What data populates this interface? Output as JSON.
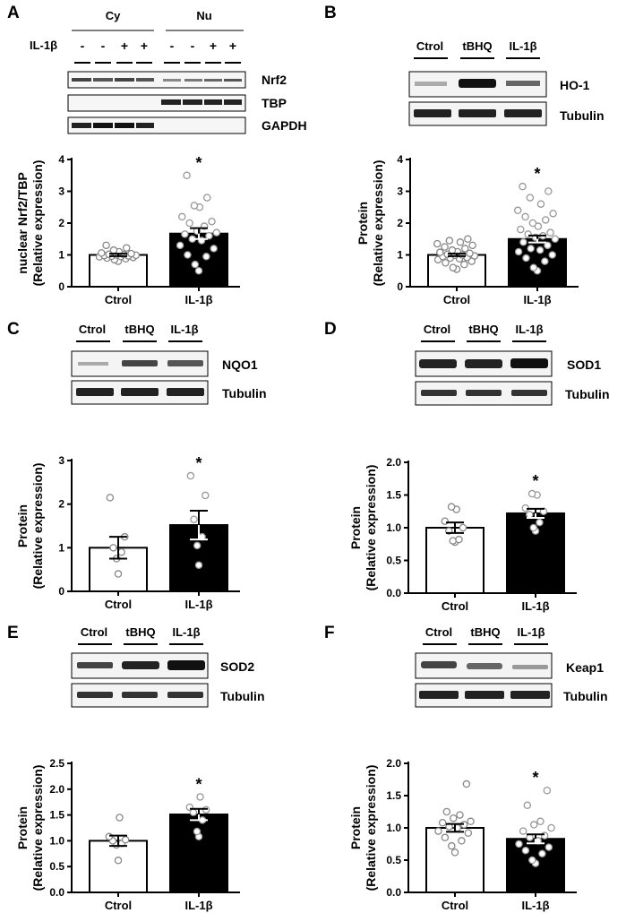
{
  "panels": [
    {
      "letter": "A",
      "blot": {
        "groups": [
          "Cy",
          "Nu"
        ],
        "row_label": "IL-1β",
        "signs": [
          "-",
          "-",
          "+",
          "+",
          "-",
          "-",
          "+",
          "+"
        ],
        "bands": [
          "Nrf2",
          "TBP",
          "GAPDH"
        ]
      },
      "chart_data": {
        "type": "bar",
        "categories": [
          "Ctrol",
          "IL-1β"
        ],
        "values": [
          1.0,
          1.67
        ],
        "errors": [
          0.04,
          0.17
        ],
        "points": [
          [
            0.8,
            0.85,
            0.88,
            0.9,
            0.92,
            0.94,
            0.95,
            0.96,
            0.97,
            0.98,
            0.99,
            1.0,
            1.01,
            1.02,
            1.04,
            1.06,
            1.1,
            1.15,
            1.22,
            1.3
          ],
          [
            0.5,
            0.7,
            0.95,
            1.0,
            1.2,
            1.3,
            1.45,
            1.5,
            1.6,
            1.65,
            1.7,
            1.75,
            1.9,
            2.0,
            2.05,
            2.2,
            2.5,
            2.55,
            2.8,
            3.5
          ]
        ],
        "ylabel": [
          "nuclear Nrf2/TBP",
          "(Relative expression)"
        ],
        "ylim": [
          0,
          4
        ],
        "yticks": [
          "0",
          "1",
          "2",
          "3",
          "4"
        ],
        "significance": "*"
      }
    },
    {
      "letter": "B",
      "blot": {
        "lanes": [
          "Ctrol",
          "tBHQ",
          "IL-1β"
        ],
        "bands": [
          "HO-1",
          "Tubulin"
        ]
      },
      "chart_data": {
        "type": "bar",
        "categories": [
          "Ctrol",
          "IL-1β"
        ],
        "values": [
          1.0,
          1.5
        ],
        "errors": [
          0.04,
          0.11
        ],
        "points": [
          [
            0.55,
            0.6,
            0.7,
            0.75,
            0.8,
            0.85,
            0.88,
            0.9,
            0.92,
            0.95,
            0.97,
            0.99,
            1.0,
            1.02,
            1.05,
            1.08,
            1.1,
            1.15,
            1.2,
            1.25,
            1.3,
            1.35,
            1.4,
            1.45,
            1.5
          ],
          [
            0.5,
            0.6,
            0.8,
            0.9,
            1.0,
            1.1,
            1.15,
            1.2,
            1.3,
            1.4,
            1.5,
            1.55,
            1.6,
            1.65,
            1.7,
            1.8,
            1.9,
            2.0,
            2.1,
            2.2,
            2.3,
            2.4,
            2.6,
            2.8,
            3.0,
            3.15
          ]
        ],
        "ylabel": [
          "Protein",
          "(Relative expression)"
        ],
        "ylim": [
          0,
          4
        ],
        "yticks": [
          "0",
          "1",
          "2",
          "3",
          "4"
        ],
        "significance": "*"
      }
    },
    {
      "letter": "C",
      "blot": {
        "lanes": [
          "Ctrol",
          "tBHQ",
          "IL-1β"
        ],
        "bands": [
          "NQO1",
          "Tubulin"
        ]
      },
      "chart_data": {
        "type": "bar",
        "categories": [
          "Ctrol",
          "IL-1β"
        ],
        "values": [
          1.0,
          1.52
        ],
        "errors": [
          0.25,
          0.33
        ],
        "points": [
          [
            0.4,
            0.75,
            0.9,
            1.0,
            1.25,
            2.15
          ],
          [
            0.6,
            1.05,
            1.25,
            1.65,
            2.2,
            2.65
          ]
        ],
        "ylabel": [
          "Protein",
          "(Relative expression)"
        ],
        "ylim": [
          0,
          3
        ],
        "yticks": [
          "0",
          "1",
          "2",
          "3"
        ],
        "significance": "*"
      }
    },
    {
      "letter": "D",
      "blot": {
        "lanes": [
          "Ctrol",
          "tBHQ",
          "IL-1β"
        ],
        "bands": [
          "SOD1",
          "Tubulin"
        ]
      },
      "chart_data": {
        "type": "bar",
        "categories": [
          "Ctrol",
          "IL-1β"
        ],
        "values": [
          1.0,
          1.22
        ],
        "errors": [
          0.08,
          0.07
        ],
        "points": [
          [
            0.78,
            0.8,
            0.82,
            0.95,
            1.0,
            1.1,
            1.28,
            1.32
          ],
          [
            0.95,
            1.0,
            1.08,
            1.2,
            1.25,
            1.3,
            1.5,
            1.52
          ]
        ],
        "ylabel": [
          "Protein",
          "(Relative expression)"
        ],
        "ylim": [
          0,
          2
        ],
        "yticks": [
          "0.0",
          "0.5",
          "1.0",
          "1.5",
          "2.0"
        ],
        "significance": "*"
      }
    },
    {
      "letter": "E",
      "blot": {
        "lanes": [
          "Ctrol",
          "tBHQ",
          "IL-1β"
        ],
        "bands": [
          "SOD2",
          "Tubulin"
        ]
      },
      "chart_data": {
        "type": "bar",
        "categories": [
          "Ctrol",
          "IL-1β"
        ],
        "values": [
          1.0,
          1.51
        ],
        "errors": [
          0.1,
          0.11
        ],
        "points": [
          [
            0.62,
            0.92,
            0.95,
            1.0,
            1.02,
            1.08,
            1.45
          ],
          [
            1.08,
            1.18,
            1.4,
            1.55,
            1.6,
            1.65,
            1.85
          ]
        ],
        "ylabel": [
          "Protein",
          "(Relative expression)"
        ],
        "ylim": [
          0,
          2.5
        ],
        "yticks": [
          "0.0",
          "0.5",
          "1.0",
          "1.5",
          "2.0",
          "2.5"
        ],
        "significance": "*"
      }
    },
    {
      "letter": "F",
      "blot": {
        "lanes": [
          "Ctrol",
          "tBHQ",
          "IL-1β"
        ],
        "bands": [
          "Keap1",
          "Tubulin"
        ]
      },
      "chart_data": {
        "type": "bar",
        "categories": [
          "Ctrol",
          "IL-1β"
        ],
        "values": [
          1.0,
          0.83
        ],
        "errors": [
          0.06,
          0.07
        ],
        "points": [
          [
            0.62,
            0.72,
            0.8,
            0.85,
            0.92,
            0.95,
            1.0,
            1.02,
            1.05,
            1.08,
            1.1,
            1.15,
            1.2,
            1.25,
            1.68
          ],
          [
            0.45,
            0.5,
            0.6,
            0.65,
            0.7,
            0.75,
            0.8,
            0.85,
            0.88,
            0.95,
            1.0,
            1.05,
            1.1,
            1.35,
            1.58
          ]
        ],
        "ylabel": [
          "Protein",
          "(Relative expression)"
        ],
        "ylim": [
          0,
          2
        ],
        "yticks": [
          "0.0",
          "0.5",
          "1.0",
          "1.5",
          "2.0"
        ],
        "significance": "*"
      }
    }
  ]
}
